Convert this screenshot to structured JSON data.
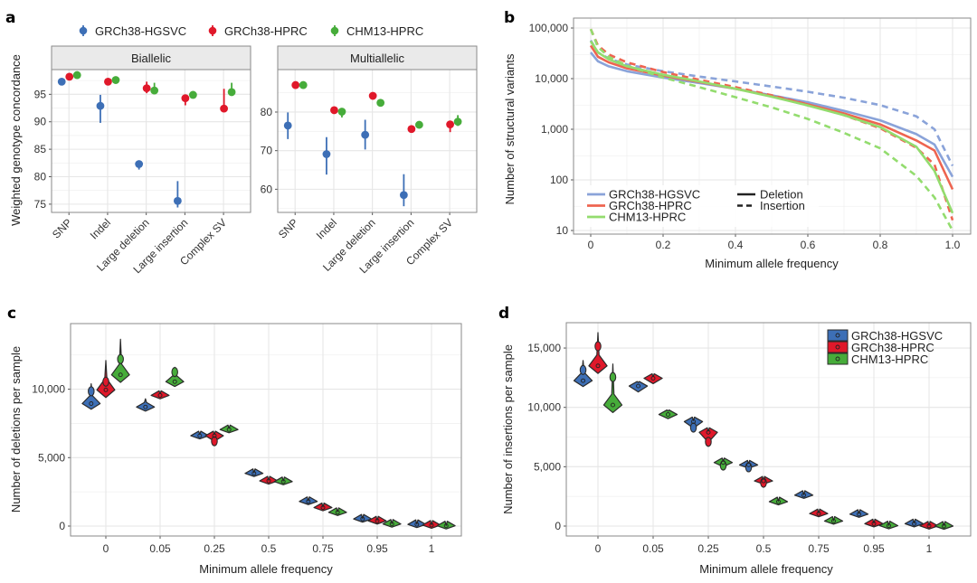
{
  "figure": {
    "panel_labels": [
      "a",
      "b",
      "c",
      "d"
    ]
  },
  "colors": {
    "GRCh38-HGSVC": "#3d6fb6",
    "GRCh38-HPRC": "#e0182a",
    "CHM13-HPRC": "#46ac3a",
    "line_GRCh38-HGSVC": "#8aa3d9",
    "line_GRCh38-HPRC": "#ee6450",
    "line_CHM13-HPRC": "#93dc6e"
  },
  "chart_data": [
    {
      "id": "a",
      "type": "scatter",
      "title": "",
      "ylabel": "Weighted genotype concordance",
      "xlabel": "",
      "legend": {
        "placement": "top",
        "entries": [
          "GRCh38-HGSVC",
          "GRCh38-HPRC",
          "CHM13-HPRC"
        ]
      },
      "categories": [
        "SNP",
        "Indel",
        "Large deletion",
        "Large insertion",
        "Complex SV"
      ],
      "facets": [
        {
          "name": "Biallelic",
          "ylim": [
            73.5,
            99.5
          ],
          "yticks": [
            75,
            80,
            85,
            90,
            95
          ],
          "series": [
            {
              "name": "GRCh38-HGSVC",
              "values": [
                97.3,
                92.9,
                82.3,
                75.6,
                null
              ],
              "low": [
                97.1,
                89.8,
                81.3,
                74.4,
                null
              ],
              "high": [
                97.5,
                94.9,
                82.6,
                79.2,
                null
              ]
            },
            {
              "name": "GRCh38-HPRC",
              "values": [
                98.2,
                97.3,
                96.1,
                94.3,
                92.4
              ],
              "low": [
                98.1,
                97.1,
                95.2,
                93.0,
                92.0
              ],
              "high": [
                98.3,
                97.4,
                97.3,
                94.6,
                96.0
              ]
            },
            {
              "name": "CHM13-HPRC",
              "values": [
                98.5,
                97.6,
                95.7,
                94.9,
                95.4
              ],
              "low": [
                98.4,
                97.5,
                95.4,
                94.7,
                95.1
              ],
              "high": [
                98.6,
                97.7,
                97.1,
                95.0,
                97.1
              ]
            }
          ]
        },
        {
          "name": "Multiallelic",
          "ylim": [
            54,
            91
          ],
          "yticks": [
            60,
            70,
            80
          ],
          "series": [
            {
              "name": "GRCh38-HGSVC",
              "values": [
                76.5,
                69.1,
                74.1,
                58.5,
                null
              ],
              "low": [
                73.0,
                63.8,
                70.3,
                55.6,
                null
              ],
              "high": [
                79.9,
                73.5,
                78.0,
                63.9,
                null
              ]
            },
            {
              "name": "GRCh38-HPRC",
              "values": [
                87.0,
                80.5,
                84.2,
                75.6,
                76.8
              ],
              "low": [
                86.8,
                79.5,
                84.0,
                75.3,
                74.8
              ],
              "high": [
                87.2,
                80.8,
                84.4,
                75.8,
                77.6
              ]
            },
            {
              "name": "CHM13-HPRC",
              "values": [
                87.0,
                80.1,
                82.4,
                76.7,
                77.5
              ],
              "low": [
                86.8,
                78.6,
                82.2,
                76.5,
                76.4
              ],
              "high": [
                87.2,
                80.4,
                82.6,
                76.9,
                79.2
              ]
            }
          ]
        }
      ]
    },
    {
      "id": "b",
      "type": "line",
      "title": "",
      "xlabel": "Minimum allele frequency",
      "ylabel": "Number of structural variants",
      "yscale": "log10",
      "xlim": [
        -0.05,
        1.03
      ],
      "ylim": [
        9,
        130000
      ],
      "xticks": [
        "0",
        "0.2",
        "0.4",
        "0.6",
        "0.8",
        "1.0"
      ],
      "xtick_values": [
        0,
        0.2,
        0.4,
        0.6,
        0.8,
        1.0
      ],
      "yticks": [
        "10",
        "100",
        "1,000",
        "10,000",
        "100,000"
      ],
      "ytick_values": [
        10,
        100,
        1000,
        10000,
        100000
      ],
      "grid": true,
      "legend": {
        "placement": "bottom-left",
        "color_entries": [
          "GRCh38-HGSVC",
          "GRCh38-HPRC",
          "CHM13-HPRC"
        ],
        "linetype_entries": [
          "Deletion",
          "Insertion"
        ]
      },
      "x": [
        0,
        0.02,
        0.05,
        0.1,
        0.2,
        0.3,
        0.4,
        0.5,
        0.6,
        0.7,
        0.8,
        0.9,
        0.95,
        1.0
      ],
      "series": [
        {
          "name": "GRCh38-HGSVC",
          "type": "Deletion",
          "values": [
            33000,
            22000,
            17500,
            14000,
            10500,
            8200,
            6300,
            4700,
            3400,
            2300,
            1500,
            800,
            500,
            115
          ]
        },
        {
          "name": "GRCh38-HGSVC",
          "type": "Insertion",
          "values": [
            57000,
            33000,
            25000,
            19000,
            14000,
            11000,
            8800,
            7000,
            5500,
            4200,
            3000,
            1800,
            1000,
            190
          ]
        },
        {
          "name": "GRCh38-HPRC",
          "type": "Deletion",
          "values": [
            45000,
            27000,
            21000,
            16000,
            11500,
            8600,
            6300,
            4500,
            3100,
            2050,
            1250,
            600,
            380,
            65
          ]
        },
        {
          "name": "GRCh38-HPRC",
          "type": "Insertion",
          "values": [
            95000,
            45000,
            30000,
            21000,
            13500,
            9500,
            6800,
            4700,
            3100,
            1900,
            1050,
            430,
            200,
            16
          ]
        },
        {
          "name": "CHM13-HPRC",
          "type": "Deletion",
          "values": [
            55000,
            33000,
            24000,
            17500,
            12000,
            8800,
            6300,
            4400,
            2950,
            1900,
            1100,
            450,
            150,
            22
          ]
        },
        {
          "name": "CHM13-HPRC",
          "type": "Insertion",
          "values": [
            95000,
            42000,
            27000,
            18000,
            10500,
            6800,
            4300,
            2700,
            1600,
            850,
            420,
            120,
            45,
            10
          ]
        }
      ]
    },
    {
      "id": "c",
      "type": "violin",
      "title": "",
      "xlabel": "Minimum allele frequency",
      "ylabel": "Number of deletions per sample",
      "categories": [
        "0",
        "0.05",
        "0.25",
        "0.5",
        "0.75",
        "0.95",
        "1"
      ],
      "ylim": [
        -700,
        14400
      ],
      "yticks": [
        "0",
        "5,000",
        "10,000"
      ],
      "ytick_values": [
        0,
        5000,
        10000
      ],
      "grid": true,
      "series": [
        {
          "name": "GRCh38-HGSVC",
          "median": [
            8950,
            8700,
            6600,
            3850,
            1800,
            520,
            120
          ],
          "min": [
            8700,
            8400,
            6450,
            3750,
            1720,
            480,
            90
          ],
          "max": [
            10400,
            9300,
            6700,
            3900,
            1850,
            560,
            150
          ],
          "mode2": [
            9850,
            null,
            null,
            null,
            null,
            null,
            null
          ]
        },
        {
          "name": "GRCh38-HPRC",
          "median": [
            9950,
            9550,
            6600,
            3300,
            1350,
            380,
            70
          ],
          "min": [
            9750,
            9300,
            6200,
            3150,
            1280,
            340,
            40
          ],
          "max": [
            12100,
            9700,
            6700,
            3350,
            1400,
            420,
            100
          ],
          "mode2": [
            10550,
            null,
            6200,
            null,
            null,
            null,
            null
          ]
        },
        {
          "name": "CHM13-HPRC",
          "median": [
            11050,
            10550,
            7050,
            3250,
            1000,
            150,
            20
          ],
          "min": [
            10750,
            10200,
            6900,
            3200,
            950,
            120,
            0
          ],
          "max": [
            13650,
            11600,
            7150,
            3300,
            1050,
            180,
            40
          ],
          "mode2": [
            12200,
            11250,
            null,
            null,
            null,
            null,
            null
          ]
        }
      ]
    },
    {
      "id": "d",
      "type": "violin",
      "title": "",
      "xlabel": "Minimum allele frequency",
      "ylabel": "Number of insertions per sample",
      "categories": [
        "0",
        "0.05",
        "0.25",
        "0.5",
        "0.75",
        "0.95",
        "1"
      ],
      "ylim": [
        -900,
        17000
      ],
      "yticks": [
        "0",
        "5,000",
        "10,000",
        "15,000"
      ],
      "ytick_values": [
        0,
        5000,
        10000,
        15000
      ],
      "grid": true,
      "legend": {
        "placement": "top-right",
        "entries": [
          "GRCh38-HGSVC",
          "GRCh38-HPRC",
          "CHM13-HPRC"
        ]
      },
      "series": [
        {
          "name": "GRCh38-HGSVC",
          "median": [
            12250,
            11800,
            8800,
            5150,
            2600,
            1000,
            200
          ],
          "min": [
            11950,
            11300,
            8250,
            4900,
            2550,
            950,
            150
          ],
          "max": [
            13950,
            12100,
            8900,
            5250,
            2650,
            1050,
            250
          ],
          "mode2": [
            13150,
            null,
            8300,
            4950,
            null,
            null,
            null
          ]
        },
        {
          "name": "GRCh38-HPRC",
          "median": [
            13500,
            12450,
            7900,
            3800,
            1050,
            200,
            10
          ],
          "min": [
            13100,
            12000,
            7050,
            3550,
            1000,
            150,
            0
          ],
          "max": [
            16300,
            12600,
            8000,
            3850,
            1100,
            250,
            50
          ],
          "mode2": [
            15150,
            null,
            7100,
            3650,
            null,
            null,
            null
          ]
        },
        {
          "name": "CHM13-HPRC",
          "median": [
            10200,
            9400,
            5350,
            2050,
            420,
            30,
            0
          ],
          "min": [
            9850,
            9050,
            5000,
            2000,
            380,
            0,
            0
          ],
          "max": [
            13650,
            9700,
            5500,
            2100,
            460,
            60,
            30
          ],
          "mode2": [
            12550,
            null,
            5100,
            null,
            null,
            null,
            null
          ]
        }
      ]
    }
  ]
}
